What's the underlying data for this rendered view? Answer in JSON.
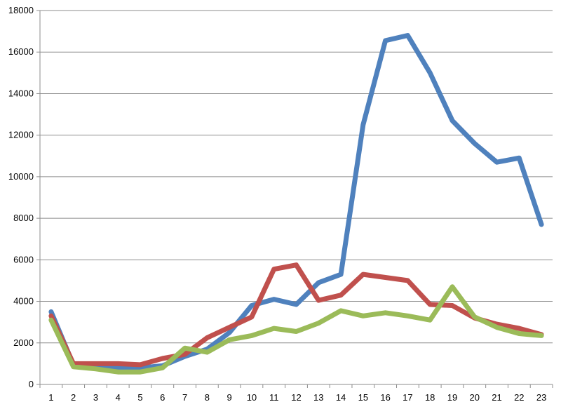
{
  "chart_data": {
    "type": "line",
    "title": "",
    "xlabel": "",
    "ylabel": "",
    "ylim": [
      0,
      18000
    ],
    "y_ticks": [
      "0",
      "2000",
      "4000",
      "6000",
      "8000",
      "10000",
      "12000",
      "14000",
      "16000",
      "18000"
    ],
    "grid": "horizontal",
    "legend": "none",
    "categories": [
      "1",
      "2",
      "3",
      "4",
      "5",
      "6",
      "7",
      "8",
      "9",
      "10",
      "11",
      "12",
      "13",
      "14",
      "15",
      "16",
      "17",
      "18",
      "19",
      "20",
      "21",
      "22",
      "23"
    ],
    "series": [
      {
        "color": "#4f81bd",
        "values": [
          3500,
          950,
          850,
          800,
          800,
          900,
          1350,
          1700,
          2500,
          3800,
          4100,
          3850,
          4900,
          5300,
          12500,
          16550,
          16800,
          15000,
          12700,
          11600,
          10700,
          10900,
          7700
        ]
      },
      {
        "color": "#c0504d",
        "values": [
          3300,
          1000,
          1000,
          1000,
          950,
          1250,
          1450,
          2250,
          2750,
          3250,
          5550,
          5750,
          4050,
          4300,
          5300,
          5150,
          5000,
          3850,
          3800,
          3200,
          2900,
          2700,
          2400
        ]
      },
      {
        "color": "#9bbb59",
        "values": [
          3100,
          850,
          750,
          600,
          600,
          800,
          1750,
          1550,
          2150,
          2350,
          2700,
          2550,
          2950,
          3550,
          3300,
          3450,
          3300,
          3100,
          4700,
          3250,
          2750,
          2450,
          2350
        ]
      }
    ]
  }
}
